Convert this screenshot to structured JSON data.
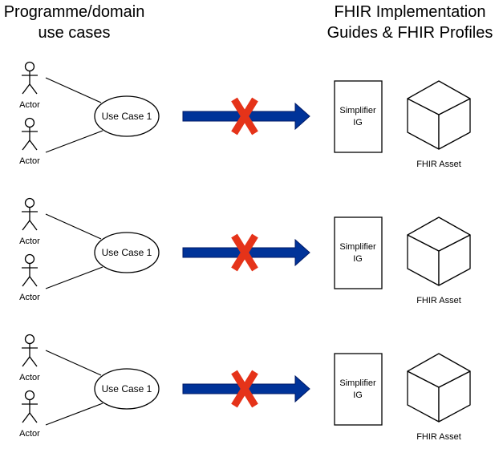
{
  "headings": {
    "left": [
      "Programme/domain",
      "use cases"
    ],
    "right": [
      "FHIR Implementation",
      "Guides & FHIR Profiles"
    ]
  },
  "rows": [
    {
      "actor_top": "Actor",
      "actor_bottom": "Actor",
      "use_case": "Use Case 1",
      "ig_line1": "Simplifier",
      "ig_line2": "IG",
      "asset": "FHIR Asset"
    },
    {
      "actor_top": "Actor",
      "actor_bottom": "Actor",
      "use_case": "Use Case 1",
      "ig_line1": "Simplifier",
      "ig_line2": "IG",
      "asset": "FHIR Asset"
    },
    {
      "actor_top": "Actor",
      "actor_bottom": "Actor",
      "use_case": "Use Case 1",
      "ig_line1": "Simplifier",
      "ig_line2": "IG",
      "asset": "FHIR Asset"
    }
  ],
  "colors": {
    "arrow": "#003399",
    "cross": "#e53319",
    "stroke": "#000000"
  }
}
